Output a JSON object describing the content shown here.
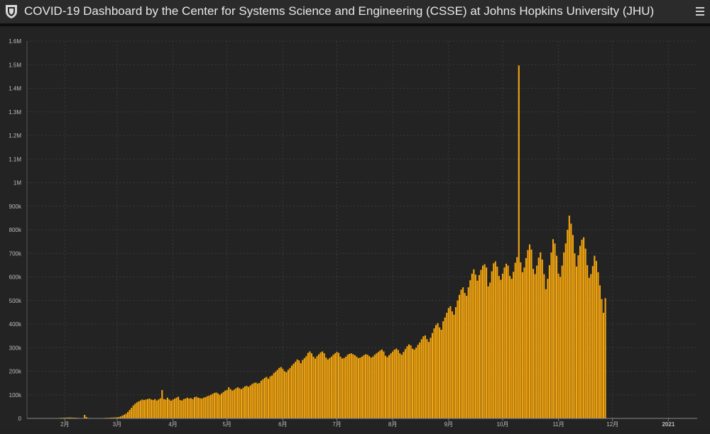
{
  "header": {
    "title": "COVID-19 Dashboard by the Center for Systems Science and Engineering (CSSE) at Johns Hopkins University (JHU)",
    "logo_icon": "jhu-shield-icon",
    "menu_icon": "hamburger-menu-icon"
  },
  "colors": {
    "bar": "#f5a60f",
    "background": "#222222",
    "grid": "#3a3a3a"
  },
  "chart_data": {
    "type": "bar",
    "ylim": [
      0,
      1600000
    ],
    "y_ticks": [
      {
        "value": 0,
        "label": "0"
      },
      {
        "value": 100000,
        "label": "100k"
      },
      {
        "value": 200000,
        "label": "200k"
      },
      {
        "value": 300000,
        "label": "300k"
      },
      {
        "value": 400000,
        "label": "400k"
      },
      {
        "value": 500000,
        "label": "500k"
      },
      {
        "value": 600000,
        "label": "600k"
      },
      {
        "value": 700000,
        "label": "700k"
      },
      {
        "value": 800000,
        "label": "800k"
      },
      {
        "value": 900000,
        "label": "900k"
      },
      {
        "value": 1000000,
        "label": "1M"
      },
      {
        "value": 1100000,
        "label": "1.1M"
      },
      {
        "value": 1200000,
        "label": "1.2M"
      },
      {
        "value": 1300000,
        "label": "1.3M"
      },
      {
        "value": 1400000,
        "label": "1.4M"
      },
      {
        "value": 1500000,
        "label": "1.5M"
      },
      {
        "value": 1600000,
        "label": "1.6M"
      }
    ],
    "x_ticks": [
      {
        "day": 11,
        "label": "2月"
      },
      {
        "day": 40,
        "label": "3月"
      },
      {
        "day": 71,
        "label": "4月"
      },
      {
        "day": 101,
        "label": "5月"
      },
      {
        "day": 132,
        "label": "6月"
      },
      {
        "day": 162,
        "label": "7月"
      },
      {
        "day": 193,
        "label": "8月"
      },
      {
        "day": 224,
        "label": "9月"
      },
      {
        "day": 254,
        "label": "10月"
      },
      {
        "day": 285,
        "label": "11月"
      },
      {
        "day": 315,
        "label": "12月"
      },
      {
        "day": 346,
        "label": "2021"
      }
    ],
    "x_range": [
      -10,
      362
    ],
    "values": [
      0,
      0,
      0,
      0,
      0,
      0,
      0,
      1000,
      2000,
      2500,
      3000,
      3000,
      3500,
      4000,
      4000,
      3500,
      3000,
      3000,
      2500,
      2000,
      1500,
      1000,
      15000,
      6000,
      2000,
      1500,
      1500,
      1000,
      1000,
      1000,
      1000,
      1500,
      1500,
      2000,
      2500,
      2500,
      3000,
      3500,
      4000,
      4000,
      5000,
      6000,
      8000,
      12000,
      16000,
      20000,
      27000,
      36000,
      45000,
      55000,
      62000,
      68000,
      72000,
      76000,
      80000,
      78000,
      80000,
      82000,
      84000,
      80000,
      78000,
      82000,
      76000,
      80000,
      85000,
      120000,
      82000,
      80000,
      88000,
      80000,
      75000,
      80000,
      84000,
      88000,
      92000,
      78000,
      76000,
      82000,
      84000,
      88000,
      84000,
      86000,
      82000,
      90000,
      92000,
      88000,
      86000,
      84000,
      88000,
      90000,
      94000,
      96000,
      100000,
      104000,
      108000,
      110000,
      106000,
      100000,
      106000,
      112000,
      118000,
      120000,
      132000,
      124000,
      118000,
      122000,
      128000,
      132000,
      128000,
      124000,
      130000,
      136000,
      138000,
      134000,
      140000,
      146000,
      150000,
      152000,
      148000,
      150000,
      160000,
      166000,
      172000,
      176000,
      168000,
      178000,
      182000,
      192000,
      198000,
      206000,
      214000,
      218000,
      210000,
      200000,
      196000,
      206000,
      214000,
      224000,
      232000,
      240000,
      250000,
      246000,
      234000,
      248000,
      256000,
      264000,
      278000,
      284000,
      276000,
      262000,
      254000,
      264000,
      272000,
      280000,
      284000,
      276000,
      258000,
      250000,
      256000,
      262000,
      270000,
      276000,
      282000,
      278000,
      262000,
      254000,
      256000,
      262000,
      270000,
      274000,
      276000,
      272000,
      268000,
      262000,
      256000,
      258000,
      262000,
      268000,
      272000,
      270000,
      264000,
      258000,
      262000,
      270000,
      276000,
      282000,
      288000,
      292000,
      284000,
      266000,
      260000,
      268000,
      276000,
      284000,
      292000,
      296000,
      290000,
      276000,
      270000,
      282000,
      294000,
      306000,
      314000,
      310000,
      296000,
      292000,
      300000,
      312000,
      322000,
      336000,
      348000,
      352000,
      336000,
      324000,
      342000,
      362000,
      382000,
      396000,
      404000,
      386000,
      376000,
      412000,
      428000,
      448000,
      468000,
      476000,
      454000,
      440000,
      472000,
      500000,
      524000,
      546000,
      556000,
      532000,
      520000,
      556000,
      586000,
      614000,
      632000,
      610000,
      584000,
      608000,
      630000,
      648000,
      654000,
      640000,
      560000,
      576000,
      624000,
      658000,
      666000,
      644000,
      604000,
      588000,
      614000,
      640000,
      656000,
      648000,
      604000,
      592000,
      622000,
      660000,
      684000,
      1497000,
      662000,
      620000,
      640000,
      680000,
      714000,
      738000,
      716000,
      634000,
      612000,
      648000,
      682000,
      704000,
      674000,
      612000,
      548000,
      592000,
      650000,
      704000,
      760000,
      742000,
      690000,
      614000,
      600000,
      648000,
      704000,
      742000,
      800000,
      860000,
      826000,
      778000,
      700000,
      644000,
      692000,
      732000,
      758000,
      768000,
      720000,
      650000,
      596000,
      612000,
      646000,
      690000,
      668000,
      620000,
      564000,
      506000,
      448000,
      510000
    ]
  }
}
